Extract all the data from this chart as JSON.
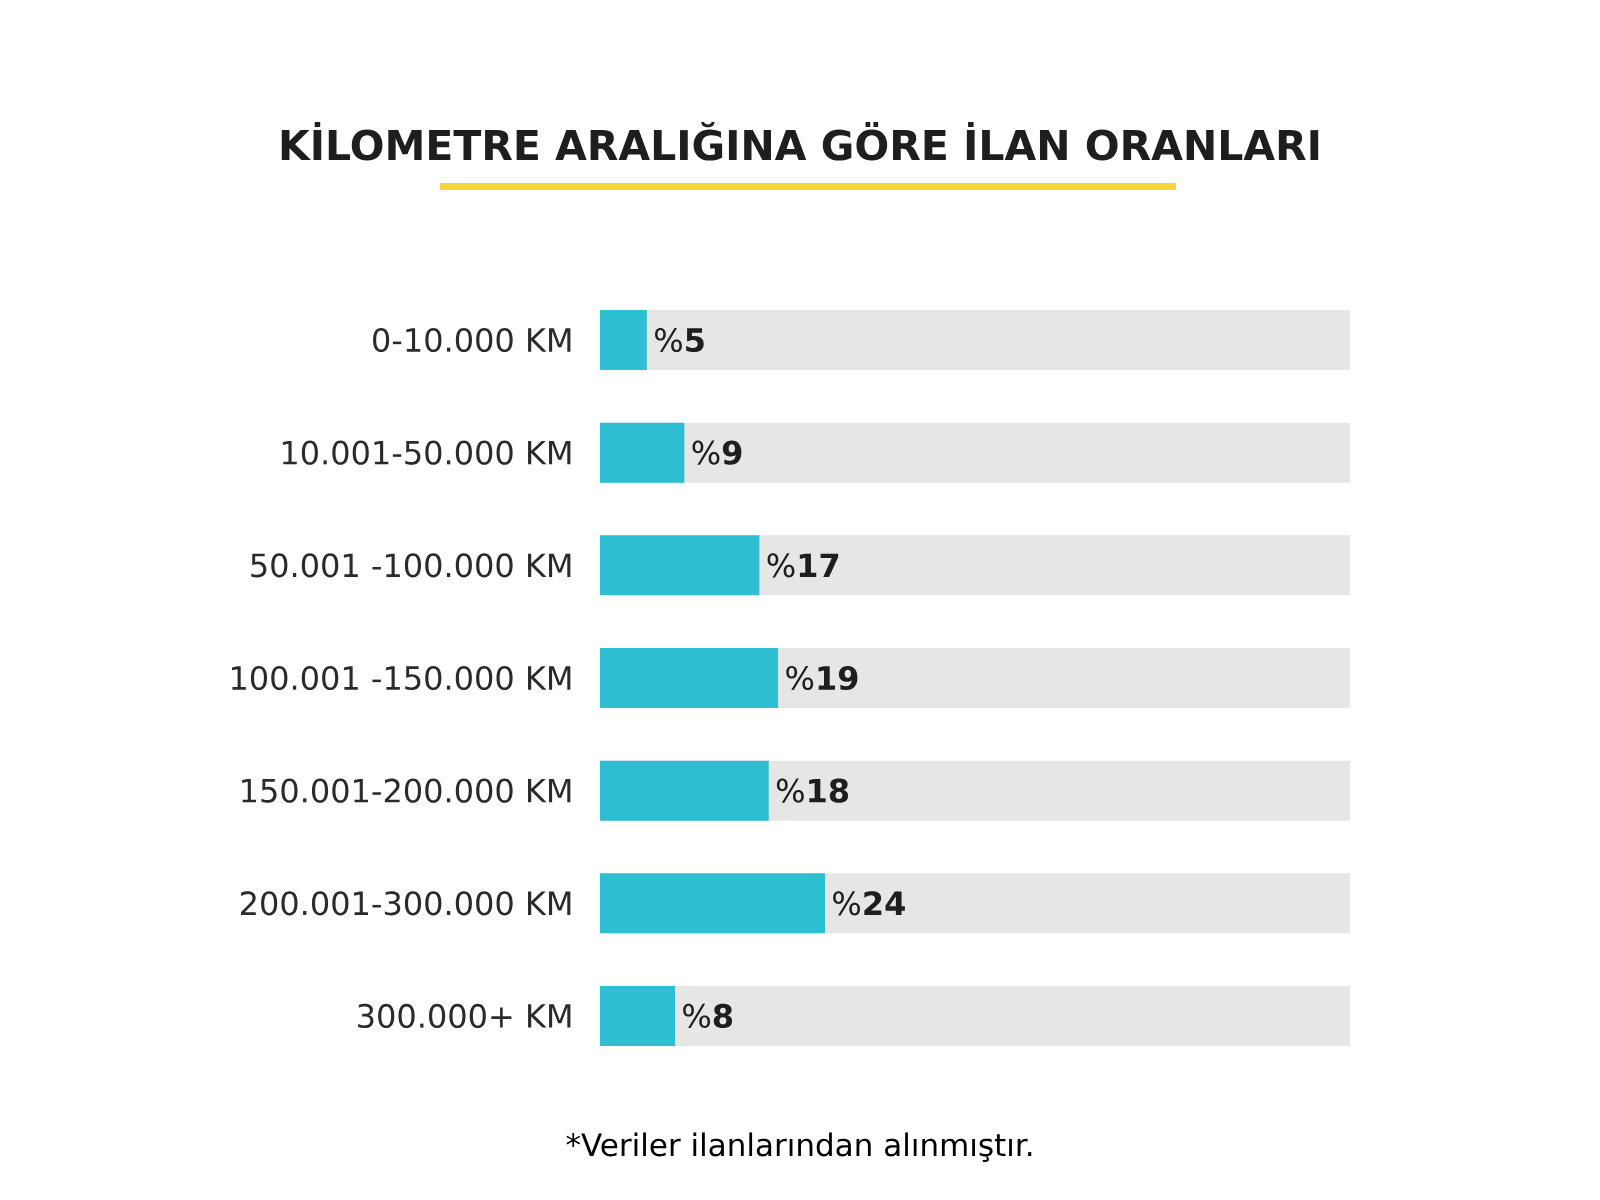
{
  "chart_data": {
    "type": "bar",
    "orientation": "horizontal",
    "title": "KİLOMETRE ARALIĞINA GÖRE İLAN ORANLARI",
    "categories": [
      "0-10.000 KM",
      "10.001-50.000 KM",
      "50.001 -100.000 KM",
      "100.001 -150.000 KM",
      "150.001-200.000 KM",
      "200.001-300.000 KM",
      "300.000+ KM"
    ],
    "values": [
      5,
      9,
      17,
      19,
      18,
      24,
      8
    ],
    "value_labels": [
      "%**5**",
      "%**9**",
      "%**17**",
      "%**19**",
      "%**18**",
      "%**24**",
      "%**8**"
    ],
    "color": "#2ebfd3",
    "xlim": [
      0,
      80
    ],
    "tick_labels": "y",
    "annotations": [
      "*Veriler ilanlarından alınmıştır."
    ]
  }
}
